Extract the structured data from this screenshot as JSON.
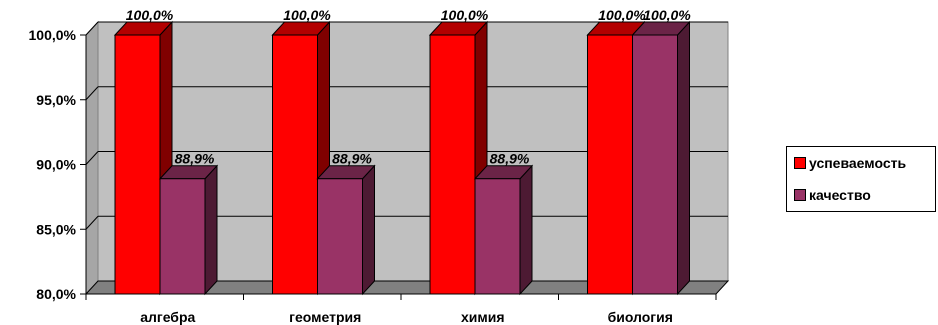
{
  "chart_data": {
    "type": "bar",
    "categories": [
      "алгебра",
      "геометрия",
      "химия",
      "биология"
    ],
    "series": [
      {
        "name": "успеваемость",
        "values": [
          100.0,
          100.0,
          100.0,
          100.0
        ],
        "labels": [
          "100,0%",
          "100,0%",
          "100,0%",
          "100,0%"
        ],
        "color": "#ff0000"
      },
      {
        "name": "качество",
        "values": [
          88.9,
          88.9,
          88.9,
          100.0
        ],
        "labels": [
          "88,9%",
          "88,9%",
          "88,9%",
          "100,0%"
        ],
        "color": "#993366"
      }
    ],
    "ylim": [
      80,
      100
    ],
    "yticks": [
      80,
      85,
      90,
      95,
      100
    ],
    "ytick_labels": [
      "80,0%",
      "85,0%",
      "90,0%",
      "95,0%",
      "100,0%"
    ],
    "grid": true,
    "three_d": true,
    "legend_position": "right"
  },
  "legend": {
    "items": [
      {
        "label": "успеваемость",
        "color": "#ff0000"
      },
      {
        "label": "качество",
        "color": "#993366"
      }
    ]
  }
}
